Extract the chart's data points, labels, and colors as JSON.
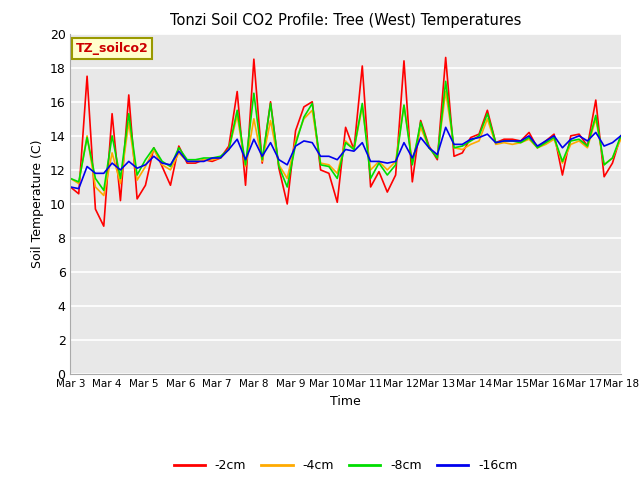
{
  "title": "Tonzi Soil CO2 Profile: Tree (West) Temperatures",
  "ylabel": "Soil Temperature (C)",
  "xlabel": "Time",
  "annotation": "TZ_soilco2",
  "ylim": [
    0,
    20
  ],
  "yticks": [
    0,
    2,
    4,
    6,
    8,
    10,
    12,
    14,
    16,
    18,
    20
  ],
  "xtick_labels": [
    "Mar 3",
    "Mar 4",
    "Mar 5",
    "Mar 6",
    "Mar 7",
    "Mar 8",
    "Mar 9",
    "Mar 10",
    "Mar 11",
    "Mar 12",
    "Mar 13",
    "Mar 14",
    "Mar 15",
    "Mar 16",
    "Mar 17",
    "Mar 18"
  ],
  "colors": {
    "-2cm": "#ff0000",
    "-4cm": "#ffaa00",
    "-8cm": "#00dd00",
    "-16cm": "#0000ee"
  },
  "legend_labels": [
    "-2cm",
    "-4cm",
    "-8cm",
    "-16cm"
  ],
  "fig_bg": "#ffffff",
  "plot_bg": "#e8e8e8",
  "grid_color": "#ffffff",
  "series_2cm": [
    11.0,
    10.6,
    17.5,
    9.7,
    8.7,
    15.3,
    10.2,
    16.4,
    10.3,
    11.1,
    13.3,
    12.2,
    11.1,
    13.4,
    12.4,
    12.4,
    12.6,
    12.5,
    12.7,
    13.4,
    16.6,
    11.1,
    18.5,
    12.4,
    16.0,
    12.1,
    10.0,
    14.3,
    15.7,
    16.0,
    12.0,
    11.8,
    10.1,
    14.5,
    13.2,
    18.1,
    11.0,
    11.9,
    10.7,
    11.7,
    18.4,
    11.3,
    14.9,
    13.4,
    12.6,
    18.6,
    12.8,
    13.0,
    13.9,
    14.1,
    15.5,
    13.6,
    13.8,
    13.8,
    13.7,
    14.2,
    13.3,
    13.7,
    14.1,
    11.7,
    14.0,
    14.1,
    13.4,
    16.1,
    11.6,
    12.4,
    14.0
  ],
  "series_4cm": [
    11.5,
    11.2,
    14.0,
    11.0,
    10.5,
    13.0,
    11.2,
    14.8,
    11.4,
    12.2,
    13.2,
    12.3,
    12.0,
    13.0,
    12.5,
    12.5,
    12.6,
    12.6,
    12.7,
    13.2,
    15.2,
    12.2,
    15.0,
    12.5,
    14.9,
    12.3,
    11.5,
    13.7,
    15.0,
    15.5,
    12.4,
    12.3,
    11.8,
    13.7,
    13.2,
    15.7,
    12.0,
    12.5,
    12.0,
    12.5,
    15.8,
    12.5,
    14.5,
    13.3,
    12.8,
    16.6,
    13.3,
    13.2,
    13.5,
    13.7,
    15.0,
    13.5,
    13.6,
    13.5,
    13.6,
    13.8,
    13.3,
    13.5,
    13.8,
    12.4,
    13.5,
    13.7,
    13.3,
    15.0,
    12.3,
    12.7,
    13.8
  ],
  "series_8cm": [
    11.5,
    11.3,
    13.9,
    11.5,
    10.8,
    14.0,
    11.5,
    15.3,
    11.7,
    12.6,
    13.3,
    12.5,
    12.2,
    13.3,
    12.6,
    12.6,
    12.7,
    12.7,
    12.8,
    13.2,
    15.5,
    12.3,
    16.5,
    12.6,
    15.9,
    12.2,
    11.0,
    13.5,
    15.1,
    15.9,
    12.3,
    12.2,
    11.5,
    13.6,
    13.2,
    15.9,
    11.5,
    12.4,
    11.7,
    12.3,
    15.8,
    12.3,
    14.8,
    13.3,
    12.7,
    17.2,
    13.3,
    13.4,
    13.7,
    14.0,
    15.3,
    13.6,
    13.7,
    13.7,
    13.6,
    13.9,
    13.3,
    13.6,
    13.9,
    12.5,
    13.7,
    13.8,
    13.4,
    15.2,
    12.3,
    12.7,
    14.0
  ],
  "series_16cm": [
    11.0,
    10.9,
    12.2,
    11.8,
    11.8,
    12.4,
    12.0,
    12.5,
    12.1,
    12.3,
    12.8,
    12.4,
    12.3,
    13.1,
    12.5,
    12.5,
    12.5,
    12.7,
    12.7,
    13.2,
    13.8,
    12.6,
    13.8,
    12.8,
    13.6,
    12.6,
    12.3,
    13.4,
    13.7,
    13.6,
    12.8,
    12.8,
    12.6,
    13.2,
    13.1,
    13.6,
    12.5,
    12.5,
    12.4,
    12.5,
    13.6,
    12.7,
    13.9,
    13.3,
    12.9,
    14.5,
    13.5,
    13.5,
    13.8,
    13.9,
    14.1,
    13.6,
    13.7,
    13.7,
    13.7,
    14.0,
    13.4,
    13.7,
    14.0,
    13.3,
    13.8,
    14.0,
    13.7,
    14.2,
    13.4,
    13.6,
    14.0
  ]
}
